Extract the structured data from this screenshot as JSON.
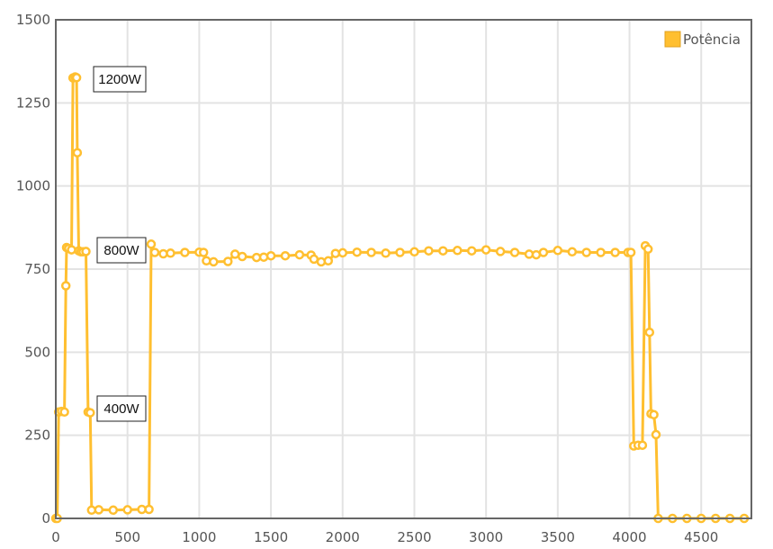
{
  "chart_data": {
    "type": "line",
    "title": "",
    "xlabel": "",
    "ylabel": "",
    "xlim": [
      0,
      4850
    ],
    "ylim": [
      0,
      1500
    ],
    "x_ticks": [
      0,
      500,
      1000,
      1500,
      2000,
      2500,
      3000,
      3500,
      4000,
      4500
    ],
    "y_ticks": [
      0,
      250,
      500,
      750,
      1000,
      1250,
      1500
    ],
    "grid": true,
    "legend": {
      "placement": "top-right",
      "entries": [
        "Potência"
      ]
    },
    "series": [
      {
        "name": "Potência",
        "color": "#FFBF30",
        "points": [
          [
            0,
            0
          ],
          [
            10,
            0
          ],
          [
            20,
            320
          ],
          [
            40,
            322
          ],
          [
            60,
            320
          ],
          [
            70,
            700
          ],
          [
            75,
            815
          ],
          [
            90,
            812
          ],
          [
            110,
            808
          ],
          [
            120,
            1325
          ],
          [
            135,
            1328
          ],
          [
            145,
            1326
          ],
          [
            150,
            1100
          ],
          [
            160,
            805
          ],
          [
            175,
            802
          ],
          [
            190,
            802
          ],
          [
            210,
            803
          ],
          [
            225,
            320
          ],
          [
            240,
            318
          ],
          [
            250,
            25
          ],
          [
            300,
            26
          ],
          [
            400,
            25
          ],
          [
            500,
            26
          ],
          [
            600,
            27
          ],
          [
            650,
            27
          ],
          [
            665,
            825
          ],
          [
            690,
            800
          ],
          [
            750,
            796
          ],
          [
            800,
            798
          ],
          [
            900,
            800
          ],
          [
            1000,
            801
          ],
          [
            1030,
            800
          ],
          [
            1050,
            775
          ],
          [
            1100,
            772
          ],
          [
            1200,
            773
          ],
          [
            1250,
            795
          ],
          [
            1300,
            788
          ],
          [
            1400,
            785
          ],
          [
            1450,
            786
          ],
          [
            1500,
            790
          ],
          [
            1600,
            790
          ],
          [
            1700,
            793
          ],
          [
            1780,
            792
          ],
          [
            1800,
            780
          ],
          [
            1850,
            772
          ],
          [
            1900,
            775
          ],
          [
            1950,
            797
          ],
          [
            2000,
            799
          ],
          [
            2100,
            801
          ],
          [
            2200,
            800
          ],
          [
            2300,
            798
          ],
          [
            2400,
            800
          ],
          [
            2500,
            802
          ],
          [
            2600,
            805
          ],
          [
            2700,
            805
          ],
          [
            2800,
            806
          ],
          [
            2900,
            805
          ],
          [
            3000,
            808
          ],
          [
            3100,
            803
          ],
          [
            3200,
            800
          ],
          [
            3300,
            795
          ],
          [
            3350,
            793
          ],
          [
            3400,
            800
          ],
          [
            3500,
            806
          ],
          [
            3600,
            802
          ],
          [
            3700,
            800
          ],
          [
            3800,
            800
          ],
          [
            3900,
            800
          ],
          [
            3990,
            800
          ],
          [
            4010,
            800
          ],
          [
            4030,
            218
          ],
          [
            4060,
            220
          ],
          [
            4090,
            220
          ],
          [
            4110,
            820
          ],
          [
            4130,
            810
          ],
          [
            4140,
            560
          ],
          [
            4150,
            315
          ],
          [
            4170,
            312
          ],
          [
            4185,
            252
          ],
          [
            4200,
            0
          ],
          [
            4300,
            0
          ],
          [
            4400,
            0
          ],
          [
            4500,
            0
          ],
          [
            4600,
            0
          ],
          [
            4700,
            0
          ],
          [
            4800,
            0
          ]
        ]
      }
    ],
    "annotations": [
      {
        "text": "1200W",
        "x": 145,
        "y": 1325
      },
      {
        "text": "800W",
        "x": 210,
        "y": 803
      },
      {
        "text": "400W",
        "x": 240,
        "y": 318
      }
    ]
  }
}
